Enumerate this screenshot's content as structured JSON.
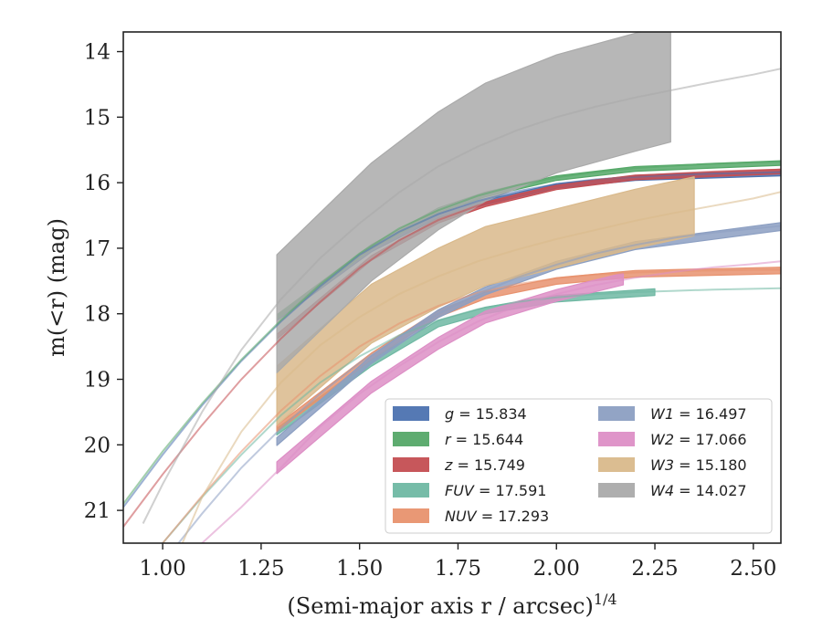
{
  "chart_data": {
    "type": "line",
    "title": "",
    "xlabel": "(Semi-major axis r / arcsec)",
    "xlabel_sup": "1/4",
    "ylabel": "m(<r) (mag)",
    "xlim": [
      0.9,
      2.57
    ],
    "ylim": [
      21.5,
      13.7
    ],
    "y_inverted": true,
    "x_ticks": [
      "1.00",
      "1.25",
      "1.50",
      "1.75",
      "2.00",
      "2.25",
      "2.50"
    ],
    "y_ticks": [
      "14",
      "15",
      "16",
      "17",
      "18",
      "19",
      "20",
      "21"
    ],
    "grid": false,
    "legend_position": "lower-right",
    "legend_columns": 2,
    "series": [
      {
        "name": "g",
        "value": "15.834",
        "color": "#4c72b0",
        "model": [
          [
            0.9,
            20.95
          ],
          [
            1.0,
            20.15
          ],
          [
            1.1,
            19.4
          ],
          [
            1.2,
            18.72
          ],
          [
            1.3,
            18.12
          ],
          [
            1.4,
            17.58
          ],
          [
            1.5,
            17.1
          ],
          [
            1.6,
            16.75
          ],
          [
            1.7,
            16.48
          ],
          [
            1.8,
            16.28
          ],
          [
            1.9,
            16.13
          ],
          [
            2.0,
            16.02
          ],
          [
            2.1,
            15.95
          ],
          [
            2.2,
            15.91
          ],
          [
            2.3,
            15.88
          ],
          [
            2.4,
            15.86
          ],
          [
            2.5,
            15.85
          ],
          [
            2.57,
            15.84
          ]
        ],
        "band": [
          [
            1.29,
            18.07,
            0.035
          ],
          [
            1.53,
            17.02,
            0.035
          ],
          [
            1.7,
            16.5,
            0.035
          ],
          [
            1.82,
            16.3,
            0.035
          ],
          [
            2.0,
            16.05,
            0.035
          ],
          [
            2.2,
            15.93,
            0.035
          ],
          [
            2.57,
            15.86,
            0.035
          ]
        ]
      },
      {
        "name": "r",
        "value": "15.644",
        "color": "#55a868",
        "model": [
          [
            0.9,
            20.9
          ],
          [
            1.0,
            20.1
          ],
          [
            1.1,
            19.37
          ],
          [
            1.2,
            18.7
          ],
          [
            1.3,
            18.1
          ],
          [
            1.4,
            17.55
          ],
          [
            1.5,
            17.08
          ],
          [
            1.6,
            16.7
          ],
          [
            1.7,
            16.42
          ],
          [
            1.8,
            16.2
          ],
          [
            1.9,
            16.04
          ],
          [
            2.0,
            15.92
          ],
          [
            2.1,
            15.84
          ],
          [
            2.2,
            15.78
          ],
          [
            2.3,
            15.74
          ],
          [
            2.4,
            15.71
          ],
          [
            2.5,
            15.69
          ],
          [
            2.57,
            15.68
          ]
        ],
        "band": [
          [
            1.29,
            18.05,
            0.035
          ],
          [
            1.53,
            16.98,
            0.035
          ],
          [
            1.7,
            16.42,
            0.035
          ],
          [
            1.82,
            16.18,
            0.035
          ],
          [
            2.0,
            15.93,
            0.035
          ],
          [
            2.2,
            15.79,
            0.035
          ],
          [
            2.57,
            15.7,
            0.035
          ]
        ]
      },
      {
        "name": "z",
        "value": "15.749",
        "color": "#c44e52",
        "model": [
          [
            0.9,
            21.25
          ],
          [
            1.0,
            20.45
          ],
          [
            1.1,
            19.7
          ],
          [
            1.2,
            19.0
          ],
          [
            1.3,
            18.38
          ],
          [
            1.4,
            17.82
          ],
          [
            1.5,
            17.3
          ],
          [
            1.6,
            16.88
          ],
          [
            1.7,
            16.57
          ],
          [
            1.8,
            16.35
          ],
          [
            1.9,
            16.18
          ],
          [
            2.0,
            16.05
          ],
          [
            2.1,
            15.96
          ],
          [
            2.2,
            15.9
          ],
          [
            2.3,
            15.86
          ],
          [
            2.4,
            15.83
          ],
          [
            2.5,
            15.81
          ],
          [
            2.57,
            15.8
          ]
        ],
        "band": [
          [
            1.29,
            18.35,
            0.035
          ],
          [
            1.53,
            17.15,
            0.035
          ],
          [
            1.7,
            16.58,
            0.035
          ],
          [
            1.82,
            16.33,
            0.035
          ],
          [
            2.0,
            16.07,
            0.035
          ],
          [
            2.2,
            15.92,
            0.035
          ],
          [
            2.57,
            15.83,
            0.035
          ]
        ]
      },
      {
        "name": "FUV",
        "value": "17.591",
        "color": "#6fb8a3",
        "model": [
          [
            1.0,
            21.5
          ],
          [
            1.1,
            20.8
          ],
          [
            1.2,
            20.15
          ],
          [
            1.3,
            19.55
          ],
          [
            1.4,
            19.05
          ],
          [
            1.5,
            18.65
          ],
          [
            1.6,
            18.33
          ],
          [
            1.7,
            18.1
          ],
          [
            1.8,
            17.93
          ],
          [
            1.9,
            17.82
          ],
          [
            2.0,
            17.75
          ],
          [
            2.1,
            17.7
          ],
          [
            2.2,
            17.67
          ],
          [
            2.3,
            17.65
          ],
          [
            2.4,
            17.63
          ],
          [
            2.5,
            17.62
          ],
          [
            2.57,
            17.61
          ]
        ],
        "band": [
          [
            1.29,
            19.8,
            0.05
          ],
          [
            1.53,
            18.75,
            0.05
          ],
          [
            1.7,
            18.15,
            0.05
          ],
          [
            1.82,
            17.95,
            0.05
          ],
          [
            2.0,
            17.77,
            0.05
          ],
          [
            2.25,
            17.67,
            0.05
          ]
        ]
      },
      {
        "name": "NUV",
        "value": "17.293",
        "color": "#e8926e",
        "model": [
          [
            1.0,
            21.5
          ],
          [
            1.1,
            20.78
          ],
          [
            1.2,
            20.1
          ],
          [
            1.3,
            19.48
          ],
          [
            1.4,
            18.95
          ],
          [
            1.5,
            18.5
          ],
          [
            1.6,
            18.15
          ],
          [
            1.7,
            17.88
          ],
          [
            1.8,
            17.68
          ],
          [
            1.9,
            17.55
          ],
          [
            2.0,
            17.46
          ],
          [
            2.1,
            17.4
          ],
          [
            2.2,
            17.37
          ],
          [
            2.3,
            17.35
          ],
          [
            2.4,
            17.34
          ],
          [
            2.5,
            17.33
          ],
          [
            2.57,
            17.33
          ]
        ],
        "band": [
          [
            1.29,
            19.75,
            0.05
          ],
          [
            1.53,
            18.65,
            0.05
          ],
          [
            1.7,
            18.0,
            0.05
          ],
          [
            1.82,
            17.72,
            0.05
          ],
          [
            2.0,
            17.5,
            0.05
          ],
          [
            2.2,
            17.39,
            0.05
          ],
          [
            2.57,
            17.34,
            0.05
          ]
        ]
      },
      {
        "name": "W1",
        "value": "16.497",
        "color": "#8c9fc2",
        "model": [
          [
            1.04,
            21.5
          ],
          [
            1.1,
            21.05
          ],
          [
            1.2,
            20.35
          ],
          [
            1.3,
            19.75
          ],
          [
            1.4,
            19.22
          ],
          [
            1.5,
            18.75
          ],
          [
            1.6,
            18.35
          ],
          [
            1.7,
            18.0
          ],
          [
            1.8,
            17.7
          ],
          [
            1.9,
            17.45
          ],
          [
            2.0,
            17.25
          ],
          [
            2.1,
            17.08
          ],
          [
            2.2,
            16.95
          ],
          [
            2.3,
            16.84
          ],
          [
            2.4,
            16.76
          ],
          [
            2.5,
            16.7
          ],
          [
            2.57,
            16.66
          ]
        ],
        "band": [
          [
            1.29,
            19.95,
            0.06
          ],
          [
            1.53,
            18.7,
            0.06
          ],
          [
            1.7,
            18.0,
            0.06
          ],
          [
            1.82,
            17.65,
            0.06
          ],
          [
            2.0,
            17.26,
            0.06
          ],
          [
            2.2,
            16.96,
            0.06
          ],
          [
            2.57,
            16.67,
            0.06
          ]
        ]
      },
      {
        "name": "W2",
        "value": "17.066",
        "color": "#dd8fc6",
        "model": [
          [
            1.1,
            21.5
          ],
          [
            1.2,
            20.95
          ],
          [
            1.3,
            20.35
          ],
          [
            1.4,
            19.72
          ],
          [
            1.5,
            19.22
          ],
          [
            1.6,
            18.8
          ],
          [
            1.7,
            18.43
          ],
          [
            1.8,
            18.12
          ],
          [
            1.9,
            17.88
          ],
          [
            2.0,
            17.7
          ],
          [
            2.1,
            17.56
          ],
          [
            2.2,
            17.45
          ],
          [
            2.3,
            17.36
          ],
          [
            2.4,
            17.29
          ],
          [
            2.5,
            17.24
          ],
          [
            2.57,
            17.2
          ]
        ],
        "band": [
          [
            1.29,
            20.35,
            0.09
          ],
          [
            1.53,
            19.12,
            0.09
          ],
          [
            1.7,
            18.45,
            0.09
          ],
          [
            1.82,
            18.05,
            0.09
          ],
          [
            2.0,
            17.72,
            0.09
          ],
          [
            2.17,
            17.47,
            0.09
          ]
        ]
      },
      {
        "name": "W3",
        "value": "15.180",
        "color": "#d9b98b",
        "model": [
          [
            1.05,
            21.5
          ],
          [
            1.1,
            20.8
          ],
          [
            1.2,
            19.8
          ],
          [
            1.3,
            19.05
          ],
          [
            1.4,
            18.48
          ],
          [
            1.5,
            18.05
          ],
          [
            1.6,
            17.7
          ],
          [
            1.7,
            17.43
          ],
          [
            1.8,
            17.2
          ],
          [
            1.9,
            17.02
          ],
          [
            2.0,
            16.86
          ],
          [
            2.1,
            16.72
          ],
          [
            2.2,
            16.58
          ],
          [
            2.3,
            16.46
          ],
          [
            2.4,
            16.35
          ],
          [
            2.5,
            16.24
          ],
          [
            2.57,
            16.14
          ]
        ],
        "band": [
          [
            1.29,
            19.25,
            0.45
          ],
          [
            1.53,
            18.0,
            0.45
          ],
          [
            1.7,
            17.45,
            0.45
          ],
          [
            1.82,
            17.12,
            0.45
          ],
          [
            2.0,
            16.85,
            0.45
          ],
          [
            2.2,
            16.55,
            0.45
          ],
          [
            2.35,
            16.36,
            0.45
          ]
        ]
      },
      {
        "name": "W4",
        "value": "14.027",
        "color": "#aaaaaa",
        "model": [
          [
            0.95,
            21.2
          ],
          [
            1.0,
            20.6
          ],
          [
            1.1,
            19.5
          ],
          [
            1.2,
            18.55
          ],
          [
            1.3,
            17.78
          ],
          [
            1.4,
            17.15
          ],
          [
            1.5,
            16.62
          ],
          [
            1.6,
            16.15
          ],
          [
            1.7,
            15.75
          ],
          [
            1.8,
            15.45
          ],
          [
            1.9,
            15.2
          ],
          [
            2.0,
            15.0
          ],
          [
            2.1,
            14.84
          ],
          [
            2.2,
            14.7
          ],
          [
            2.3,
            14.58
          ],
          [
            2.4,
            14.46
          ],
          [
            2.5,
            14.35
          ],
          [
            2.57,
            14.26
          ]
        ],
        "band": [
          [
            1.29,
            18.0,
            0.9
          ],
          [
            1.53,
            16.6,
            0.9
          ],
          [
            1.7,
            15.82,
            0.9
          ],
          [
            1.82,
            15.38,
            0.9
          ],
          [
            2.0,
            14.95,
            0.9
          ],
          [
            2.2,
            14.62,
            0.9
          ],
          [
            2.29,
            14.48,
            0.9
          ]
        ]
      }
    ]
  }
}
